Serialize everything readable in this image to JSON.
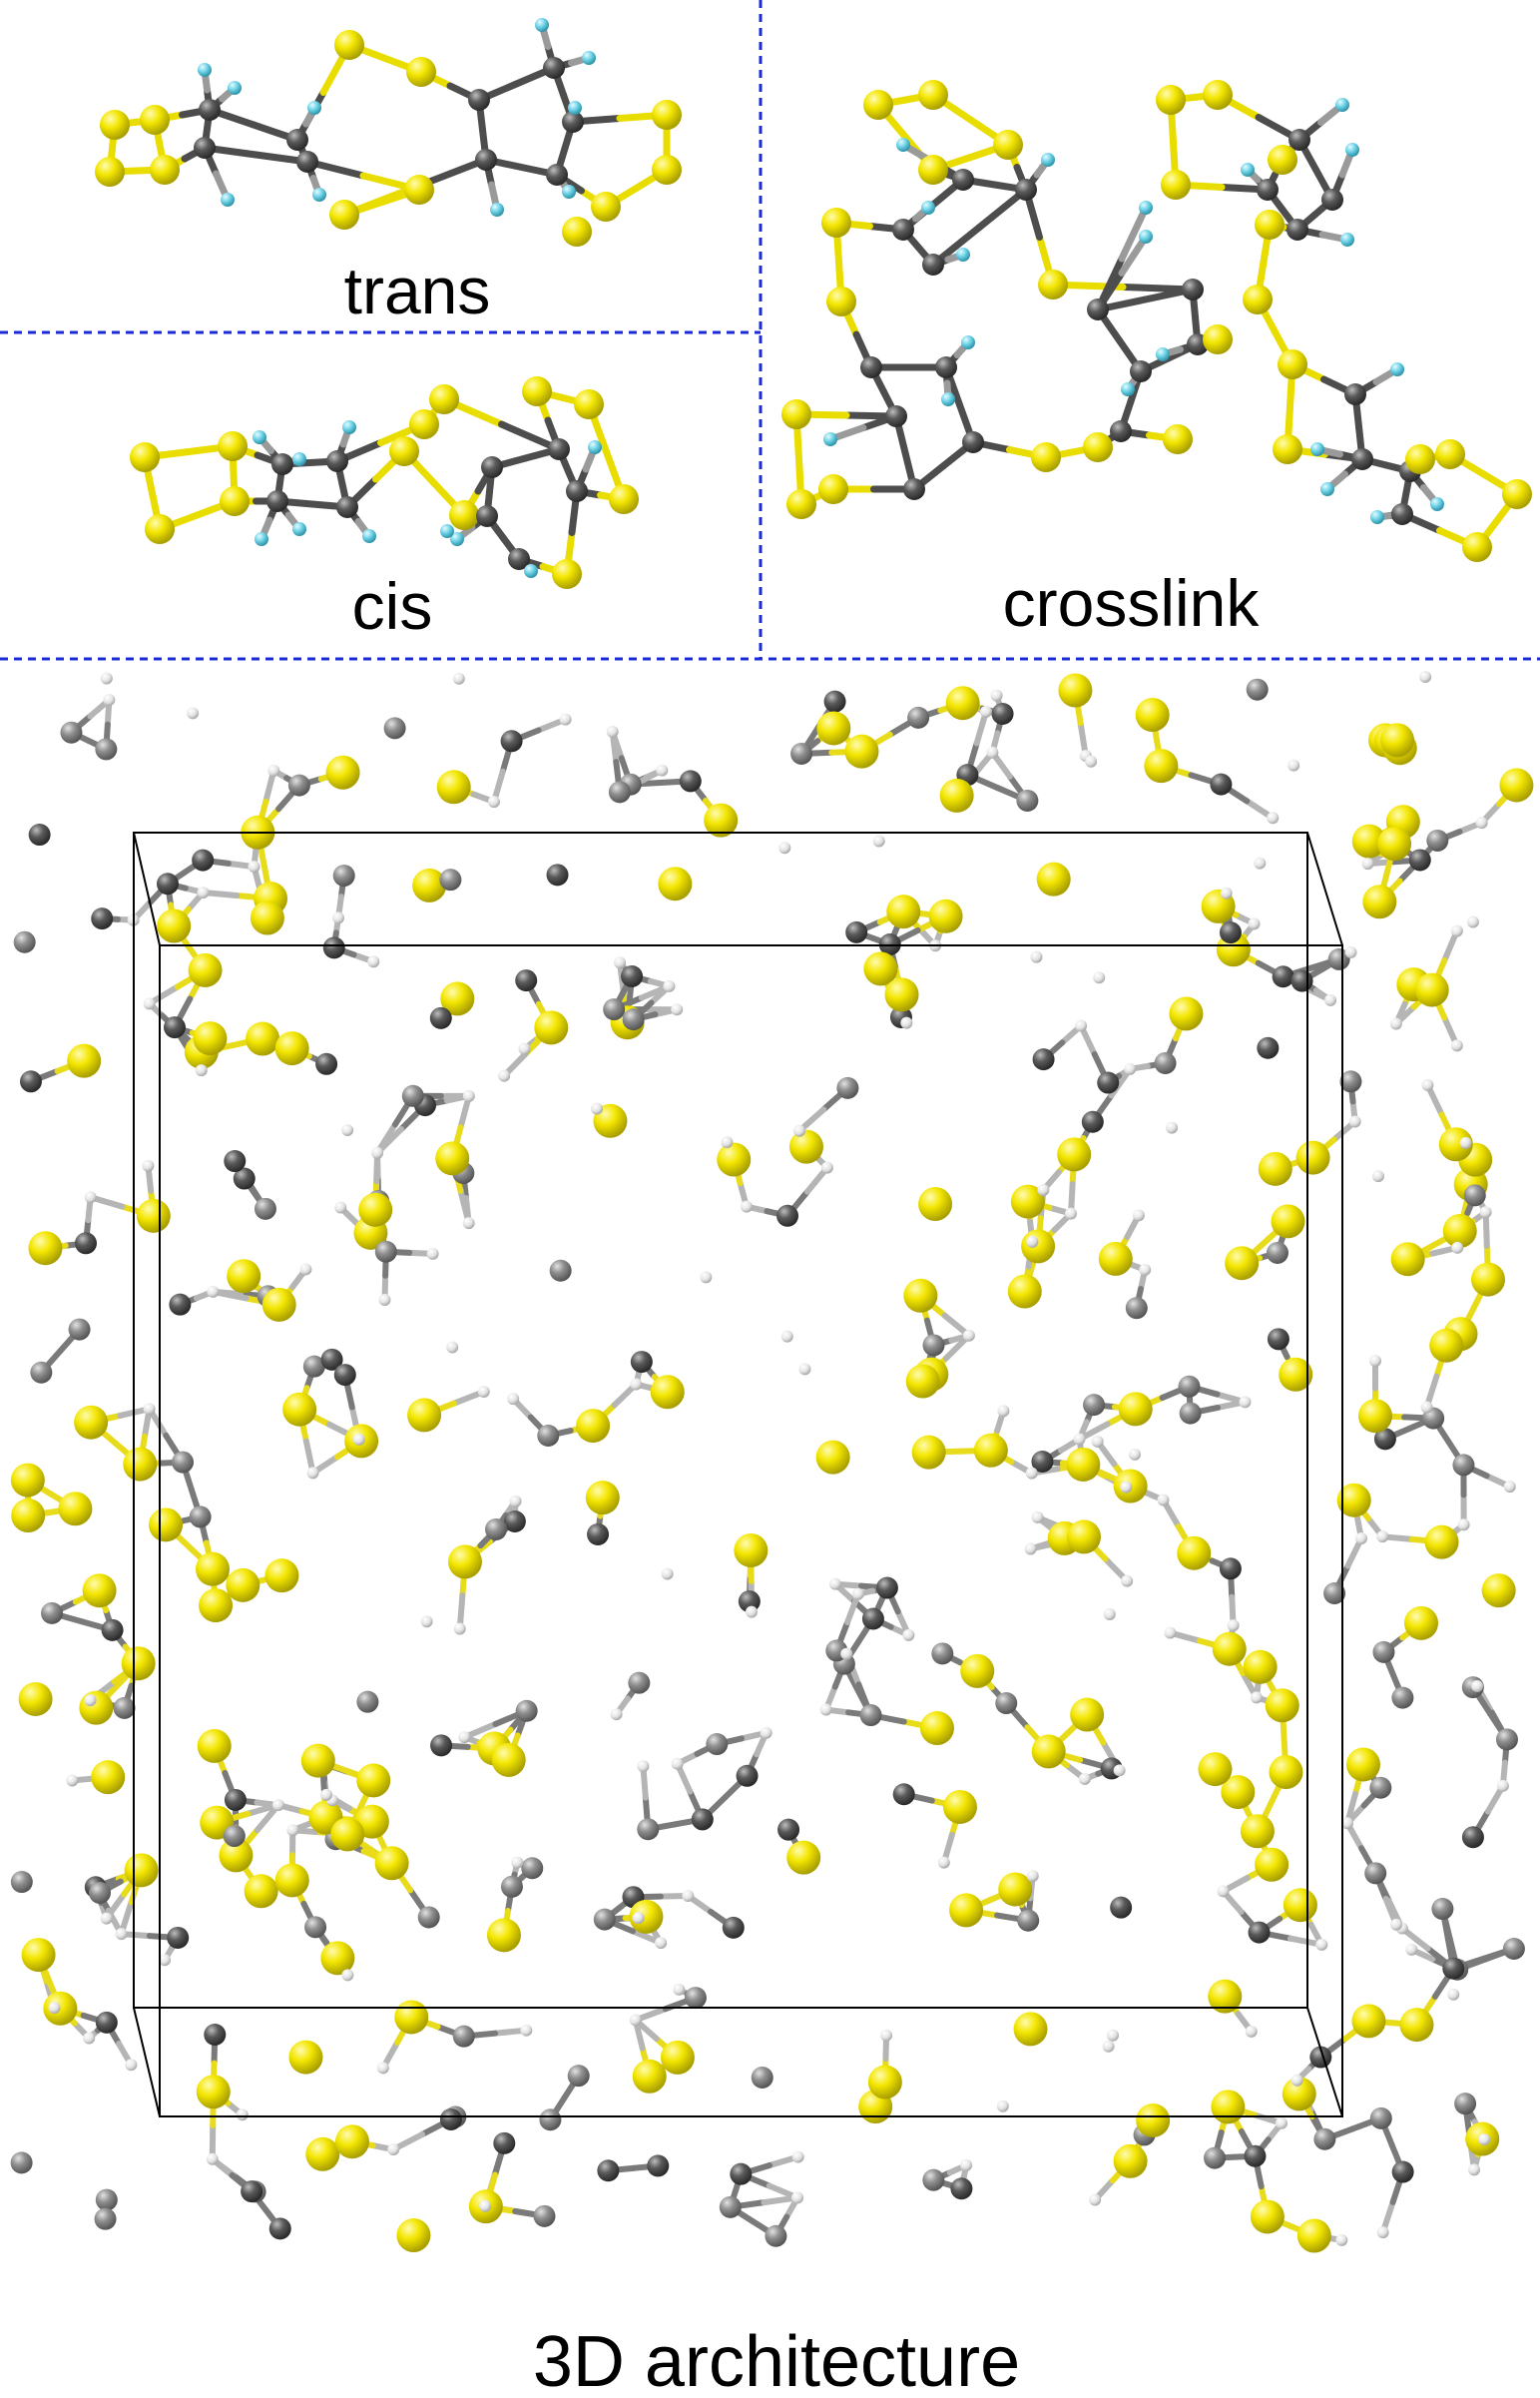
{
  "figure": {
    "panels": [
      {
        "id": "trans",
        "label": "trans"
      },
      {
        "id": "cis",
        "label": "cis"
      },
      {
        "id": "crosslink",
        "label": "crosslink"
      },
      {
        "id": "architecture",
        "label": "3D architecture"
      }
    ]
  },
  "colors": {
    "sulfur": "#f0e400",
    "carbon": "#555555",
    "carbon_light": "#8a8a8a",
    "hydrogen_panel": "#6fd3e8",
    "hydrogen_bulk": "#e6e6e6",
    "divider": "#1a2bd6",
    "cell_box": "#000000",
    "background": "#ffffff"
  },
  "atom_types": [
    "S",
    "C",
    "H"
  ]
}
